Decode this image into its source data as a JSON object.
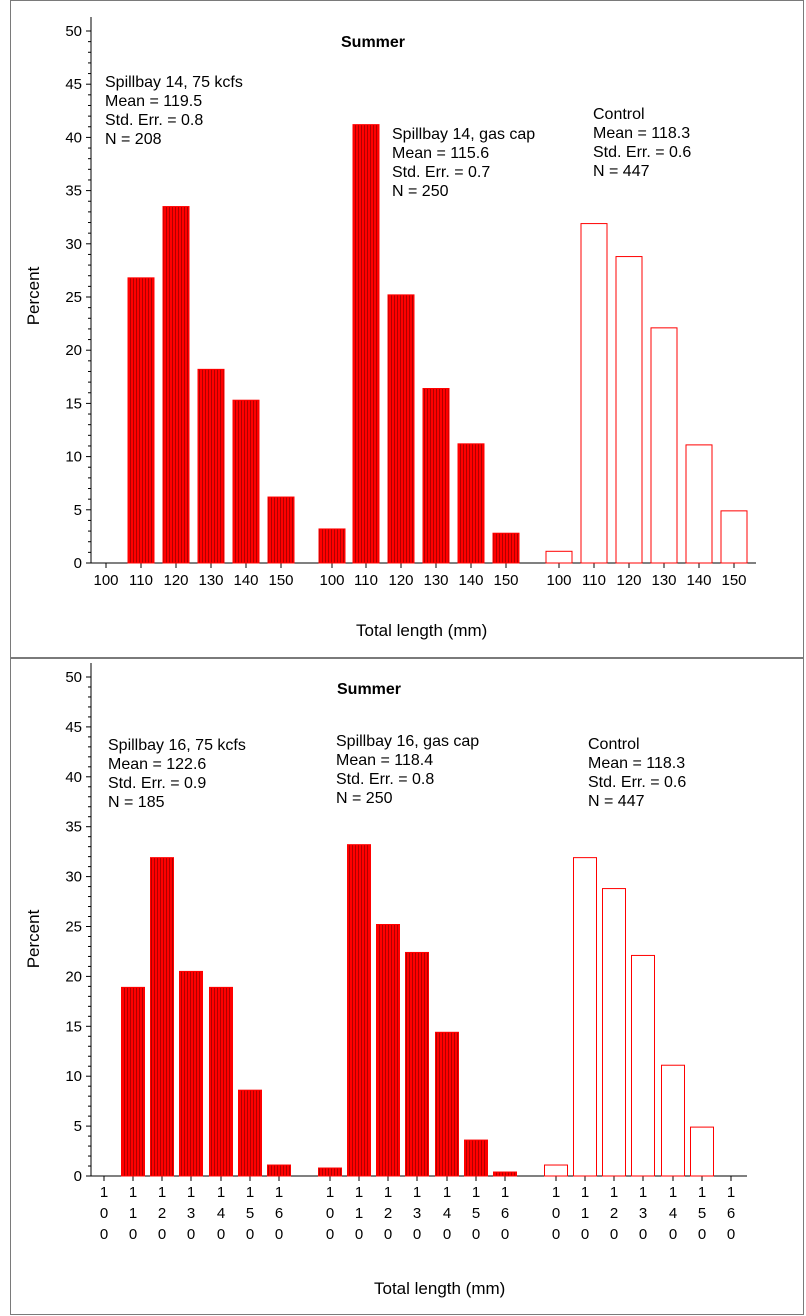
{
  "chart_data": [
    {
      "type": "bar",
      "title": "Summer",
      "ylabel": "Percent",
      "xlabel": "Total length (mm)",
      "ylim": [
        0,
        50
      ],
      "yticks": [
        0,
        5,
        10,
        15,
        20,
        25,
        30,
        35,
        40,
        45,
        50
      ],
      "tick_style": "horizontal",
      "categories": [
        "100",
        "110",
        "120",
        "130",
        "140",
        "150"
      ],
      "series": [
        {
          "values": [
            0,
            26.8,
            33.5,
            18.2,
            15.3,
            6.2
          ],
          "info": [
            "Spillbay 14, 75 kcfs",
            "Mean  =  119.5",
            "Std. Err.  =  0.8",
            "N  =  208"
          ],
          "fill": "solid"
        },
        {
          "values": [
            3.2,
            41.2,
            25.2,
            16.4,
            11.2,
            2.8
          ],
          "info": [
            "Spillbay 14, gas cap",
            "Mean  =  115.6",
            "Std. Err.  =  0.7",
            "N  =  250"
          ],
          "fill": "solid"
        },
        {
          "values": [
            1.1,
            31.9,
            28.8,
            22.1,
            11.1,
            4.9
          ],
          "info": [
            "Control",
            "Mean  =  118.3",
            "Std. Err.  =  0.6",
            "N  =  447"
          ],
          "fill": "outline"
        }
      ]
    },
    {
      "type": "bar",
      "title": "Summer",
      "ylabel": "Percent",
      "xlabel": "Total length (mm)",
      "ylim": [
        0,
        50
      ],
      "yticks": [
        0,
        5,
        10,
        15,
        20,
        25,
        30,
        35,
        40,
        45,
        50
      ],
      "tick_style": "vertical-digits",
      "categories": [
        "100",
        "110",
        "120",
        "130",
        "140",
        "150",
        "160"
      ],
      "series": [
        {
          "values": [
            0,
            18.9,
            31.9,
            20.5,
            18.9,
            8.6,
            1.1
          ],
          "info": [
            "Spillbay 16, 75 kcfs",
            "Mean  =  122.6",
            "Std. Err.  =  0.9",
            "N  =  185"
          ],
          "fill": "solid"
        },
        {
          "values": [
            0.8,
            33.2,
            25.2,
            22.4,
            14.4,
            3.6,
            0.4
          ],
          "info": [
            "Spillbay 16, gas cap",
            "Mean  =  118.4",
            "Std. Err.  =  0.8",
            "N  =  250"
          ],
          "fill": "solid"
        },
        {
          "values": [
            1.1,
            31.9,
            28.8,
            22.1,
            11.1,
            4.9,
            0
          ],
          "info": [
            "Control",
            "Mean  =  118.3",
            "Std. Err.  =  0.6",
            "N  =  447"
          ],
          "fill": "outline"
        }
      ]
    }
  ],
  "colors": {
    "bar": "#ff0000",
    "bar_stripe": "#b00000",
    "axis": "#000000"
  }
}
